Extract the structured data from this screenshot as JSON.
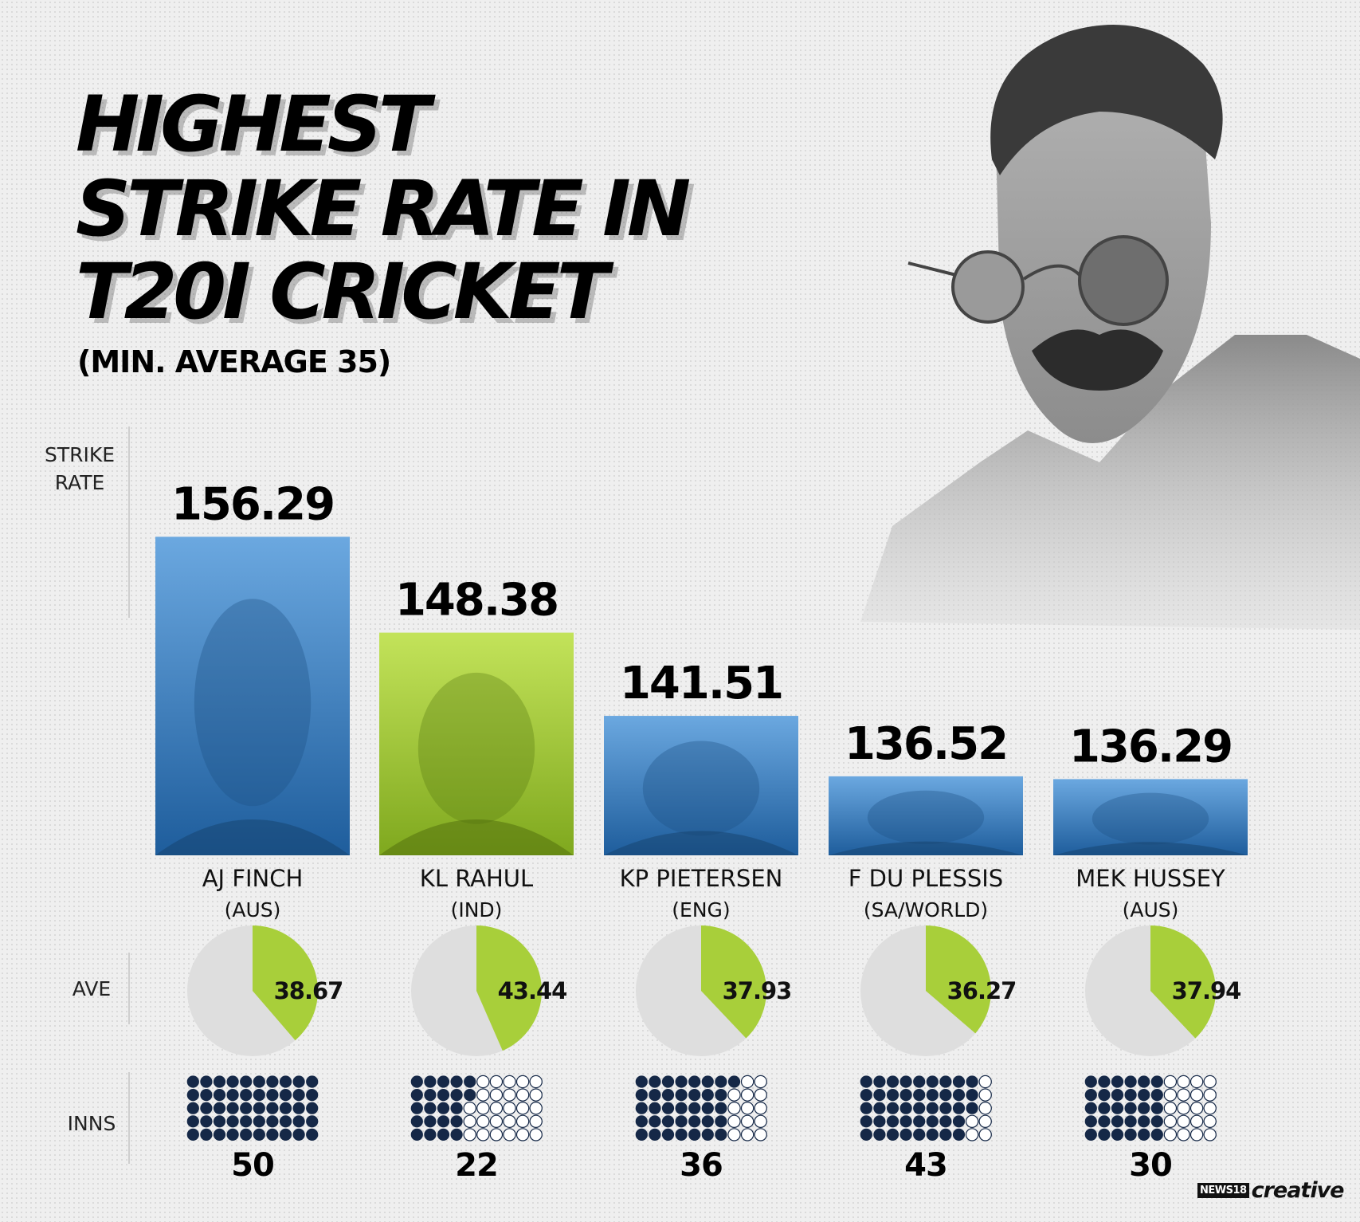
{
  "title_lines": [
    "HIGHEST",
    "STRIKE RATE IN",
    "T20I CRICKET"
  ],
  "subtitle": "(MIN. AVERAGE 35)",
  "axis_labels": {
    "strike_rate": "STRIKE\nRATE",
    "average": "AVE",
    "innings": "INNS"
  },
  "brand": {
    "badge": "NEWS18",
    "word": "creative"
  },
  "colors": {
    "blue": "#4a8fd0",
    "blue_deep": "#1e5d9c",
    "green": "#a8cf3a",
    "pie_rest": "#dedede",
    "dot_filled": "#152847",
    "dot_empty_stroke": "#152847"
  },
  "chart_data": {
    "type": "bar",
    "categories": [
      "AJ FINCH",
      "KL RAHUL",
      "KP PIETERSEN",
      "F DU PLESSIS",
      "MEK HUSSEY"
    ],
    "countries": [
      "(AUS)",
      "(IND)",
      "(ENG)",
      "(SA/WORLD)",
      "(AUS)"
    ],
    "series": [
      {
        "name": "STRIKE RATE",
        "values": [
          156.29,
          148.38,
          141.51,
          136.52,
          136.29
        ]
      },
      {
        "name": "AVE",
        "values": [
          38.67,
          43.44,
          37.93,
          36.27,
          37.94
        ]
      },
      {
        "name": "INNS",
        "values": [
          50,
          22,
          36,
          43,
          30
        ]
      }
    ],
    "highlight_index": 1,
    "average_scale_max": 100,
    "innings_dot_capacity": 50
  }
}
